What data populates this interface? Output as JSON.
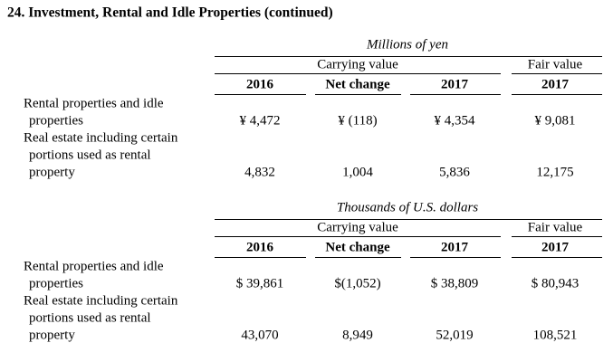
{
  "title": "24. Investment, Rental and Idle Properties (continued)",
  "sections": [
    {
      "unit": "Millions of yen",
      "groups": [
        "Carrying value",
        "Fair value"
      ],
      "columns": [
        "2016",
        "Net change",
        "2017",
        "2017"
      ],
      "rows": [
        {
          "label": [
            "Rental properties and idle",
            "properties"
          ],
          "cells": [
            "¥ 4,472",
            "¥ (118)",
            "¥ 4,354",
            "¥ 9,081"
          ]
        },
        {
          "label": [
            "Real estate including certain",
            "portions used as rental",
            "property"
          ],
          "cells": [
            "4,832",
            "1,004",
            "5,836",
            "12,175"
          ]
        }
      ]
    },
    {
      "unit": "Thousands of U.S. dollars",
      "groups": [
        "Carrying value",
        "Fair value"
      ],
      "columns": [
        "2016",
        "Net change",
        "2017",
        "2017"
      ],
      "rows": [
        {
          "label": [
            "Rental properties and idle",
            "properties"
          ],
          "cells": [
            "$ 39,861",
            "$(1,052)",
            "$ 38,809",
            "$ 80,943"
          ]
        },
        {
          "label": [
            "Real estate including certain",
            "portions used as rental",
            "property"
          ],
          "cells": [
            "43,070",
            "8,949",
            "52,019",
            "108,521"
          ]
        }
      ]
    }
  ]
}
